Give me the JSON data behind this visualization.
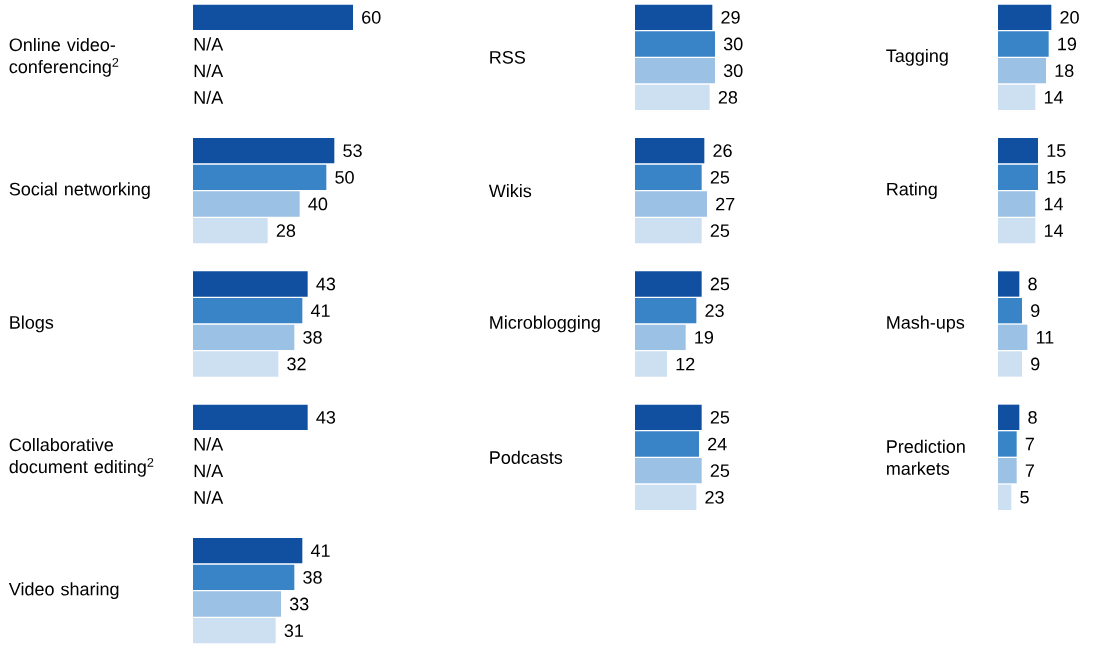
{
  "chart_data": [
    {
      "type": "bar",
      "orientation": "horizontal",
      "tick_labels": "y",
      "categories": [
        "Online video-conferencing$^{2}$",
        "Social networking",
        "Blogs",
        "Collaborative document editing$^{2}$",
        "Video sharing"
      ],
      "series": [
        {
          "color": "#1150a0",
          "values": [
            60,
            53,
            43,
            43,
            41
          ],
          "value_labels": [
            "60",
            "53",
            "43",
            "43",
            "41"
          ]
        },
        {
          "color": "#3884c6",
          "values": [
            null,
            50,
            41,
            null,
            38
          ],
          "value_labels": [
            "N/A",
            "50",
            "41",
            "N/A",
            "38"
          ]
        },
        {
          "color": "#9bc1e4",
          "values": [
            null,
            40,
            38,
            null,
            33
          ],
          "value_labels": [
            "N/A",
            "40",
            "38",
            "N/A",
            "33"
          ]
        },
        {
          "color": "#cde0f1",
          "values": [
            null,
            28,
            32,
            null,
            31
          ],
          "value_labels": [
            "N/A",
            "28",
            "32",
            "N/A",
            "31"
          ]
        }
      ]
    },
    {
      "type": "bar",
      "orientation": "horizontal",
      "tick_labels": "y",
      "categories": [
        "RSS",
        "Wikis",
        "Microblogging",
        "Podcasts"
      ],
      "series": [
        {
          "color": "#1150a0",
          "values": [
            29,
            26,
            25,
            25
          ],
          "value_labels": [
            "29",
            "26",
            "25",
            "25"
          ]
        },
        {
          "color": "#3884c6",
          "values": [
            30,
            25,
            23,
            24
          ],
          "value_labels": [
            "30",
            "25",
            "23",
            "24"
          ]
        },
        {
          "color": "#9bc1e4",
          "values": [
            30,
            27,
            19,
            25
          ],
          "value_labels": [
            "30",
            "27",
            "19",
            "25"
          ]
        },
        {
          "color": "#cde0f1",
          "values": [
            28,
            25,
            12,
            23
          ],
          "value_labels": [
            "28",
            "25",
            "12",
            "23"
          ]
        }
      ]
    },
    {
      "type": "bar",
      "orientation": "horizontal",
      "tick_labels": "y",
      "categories": [
        "Tagging",
        "Rating",
        "Mash-ups",
        "Prediction markets"
      ],
      "series": [
        {
          "color": "#1150a0",
          "values": [
            20,
            15,
            8,
            8
          ],
          "value_labels": [
            "20",
            "15",
            "8",
            "8"
          ]
        },
        {
          "color": "#3884c6",
          "values": [
            19,
            15,
            9,
            7
          ],
          "value_labels": [
            "19",
            "15",
            "9",
            "7"
          ]
        },
        {
          "color": "#9bc1e4",
          "values": [
            18,
            14,
            11,
            7
          ],
          "value_labels": [
            "18",
            "14",
            "11",
            "7"
          ]
        },
        {
          "color": "#cde0f1",
          "values": [
            14,
            14,
            9,
            5
          ],
          "value_labels": [
            "14",
            "14",
            "9",
            "5"
          ]
        }
      ]
    }
  ]
}
